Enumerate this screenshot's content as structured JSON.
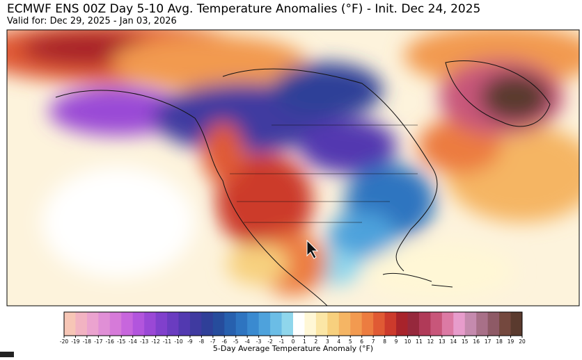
{
  "header": {
    "title": "ECMWF ENS 00Z Day 5-10 Avg. Temperature Anomalies (°F) - Init. Dec 24, 2025",
    "subtitle": "Valid for: Dec 29, 2025 - Jan 03, 2026"
  },
  "colorbar": {
    "label": "5-Day Average Temperature Anomaly (°F)",
    "ticks": [
      -20,
      -19,
      -18,
      -17,
      -16,
      -15,
      -14,
      -13,
      -12,
      -11,
      -10,
      -9,
      -8,
      -7,
      -6,
      -5,
      -4,
      -3,
      -2,
      -1,
      0,
      1,
      2,
      3,
      4,
      5,
      6,
      7,
      8,
      9,
      10,
      11,
      12,
      13,
      14,
      15,
      16,
      17,
      18,
      19,
      20
    ],
    "colors": [
      "#f7c6b6",
      "#f2b3c2",
      "#eba3cf",
      "#e08fd6",
      "#d67ad9",
      "#c766dd",
      "#b255dd",
      "#9a48d6",
      "#8040cc",
      "#6a3cc0",
      "#5239b0",
      "#3f3aa0",
      "#2f3f98",
      "#264c9c",
      "#2760ae",
      "#2e74c0",
      "#3a8ad0",
      "#4ea2dc",
      "#6bbde6",
      "#8fd6ec",
      "#ffffff",
      "#fff7d6",
      "#fbe6a6",
      "#f7d07e",
      "#f5b564",
      "#f29a50",
      "#ec7c40",
      "#e05a34",
      "#cc3a2c",
      "#a8232b",
      "#96283c",
      "#b03a58",
      "#c8567a",
      "#dc7aa4",
      "#e79ccc",
      "#c58aae",
      "#a87088",
      "#8e5a66",
      "#74483e",
      "#5a3a2e"
    ]
  }
}
